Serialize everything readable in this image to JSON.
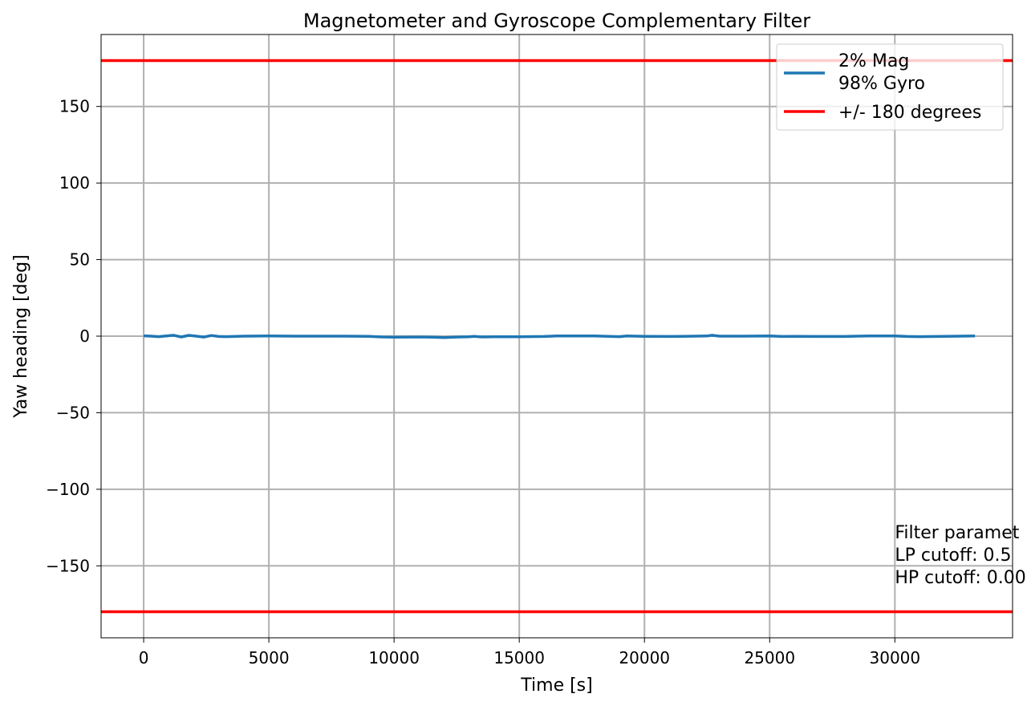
{
  "chart_data": {
    "type": "line",
    "title": "Magnetometer and Gyroscope Complementary Filter",
    "xlabel": "Time [s]",
    "ylabel": "Yaw heading [deg]",
    "xlim": [
      -1700,
      34700
    ],
    "ylim": [
      -197,
      197
    ],
    "grid": true,
    "legend_position": "top-right",
    "x_ticks": [
      0,
      5000,
      10000,
      15000,
      20000,
      25000,
      30000
    ],
    "x_tick_labels": [
      "0",
      "5000",
      "10000",
      "15000",
      "20000",
      "25000",
      "30000"
    ],
    "y_ticks": [
      150,
      100,
      50,
      0,
      -50,
      -100,
      -150
    ],
    "y_tick_labels": [
      "150",
      "100",
      "50",
      "0",
      "−50",
      "−100",
      "−150"
    ],
    "series": [
      {
        "name": "2% Mag\n98% Gyro",
        "legend_lines": [
          "2% Mag",
          "98% Gyro"
        ],
        "color": "#1f77b4",
        "x": [
          0,
          300,
          600,
          900,
          1200,
          1500,
          1800,
          2100,
          2400,
          2700,
          3000,
          3300,
          4000,
          5000,
          6000,
          7000,
          8000,
          9000,
          9500,
          10000,
          11000,
          11500,
          12000,
          12500,
          13000,
          13200,
          13500,
          14000,
          15000,
          16000,
          16500,
          17000,
          18000,
          19000,
          19300,
          20000,
          21000,
          21500,
          22000,
          22500,
          22700,
          23000,
          24000,
          25000,
          25500,
          26000,
          27000,
          28000,
          28500,
          29000,
          30000,
          30500,
          31000,
          32000,
          33200
        ],
        "y": [
          0.2,
          0.0,
          -0.3,
          0.1,
          0.6,
          -0.5,
          0.5,
          0.0,
          -0.6,
          0.4,
          -0.2,
          -0.3,
          0.0,
          0.1,
          0.0,
          0.0,
          0.0,
          -0.1,
          -0.5,
          -0.7,
          -0.5,
          -0.7,
          -0.9,
          -0.6,
          -0.4,
          -0.1,
          -0.5,
          -0.4,
          -0.4,
          -0.2,
          0.1,
          0.1,
          0.1,
          -0.3,
          0.1,
          -0.1,
          -0.2,
          -0.1,
          0.0,
          0.1,
          0.6,
          0.0,
          0.0,
          0.1,
          -0.2,
          -0.1,
          -0.2,
          -0.2,
          0.0,
          0.1,
          0.1,
          -0.2,
          -0.3,
          -0.1,
          0.1
        ]
      },
      {
        "name": "+/- 180 degrees",
        "color": "#ff0000",
        "lines_at_y": [
          180,
          -180
        ]
      }
    ],
    "annotations": [
      {
        "lines": [
          "Filter paramet",
          "LP cutoff: 0.5",
          "HP cutoff: 0.00"
        ],
        "x": 30000,
        "y": -132
      }
    ]
  }
}
